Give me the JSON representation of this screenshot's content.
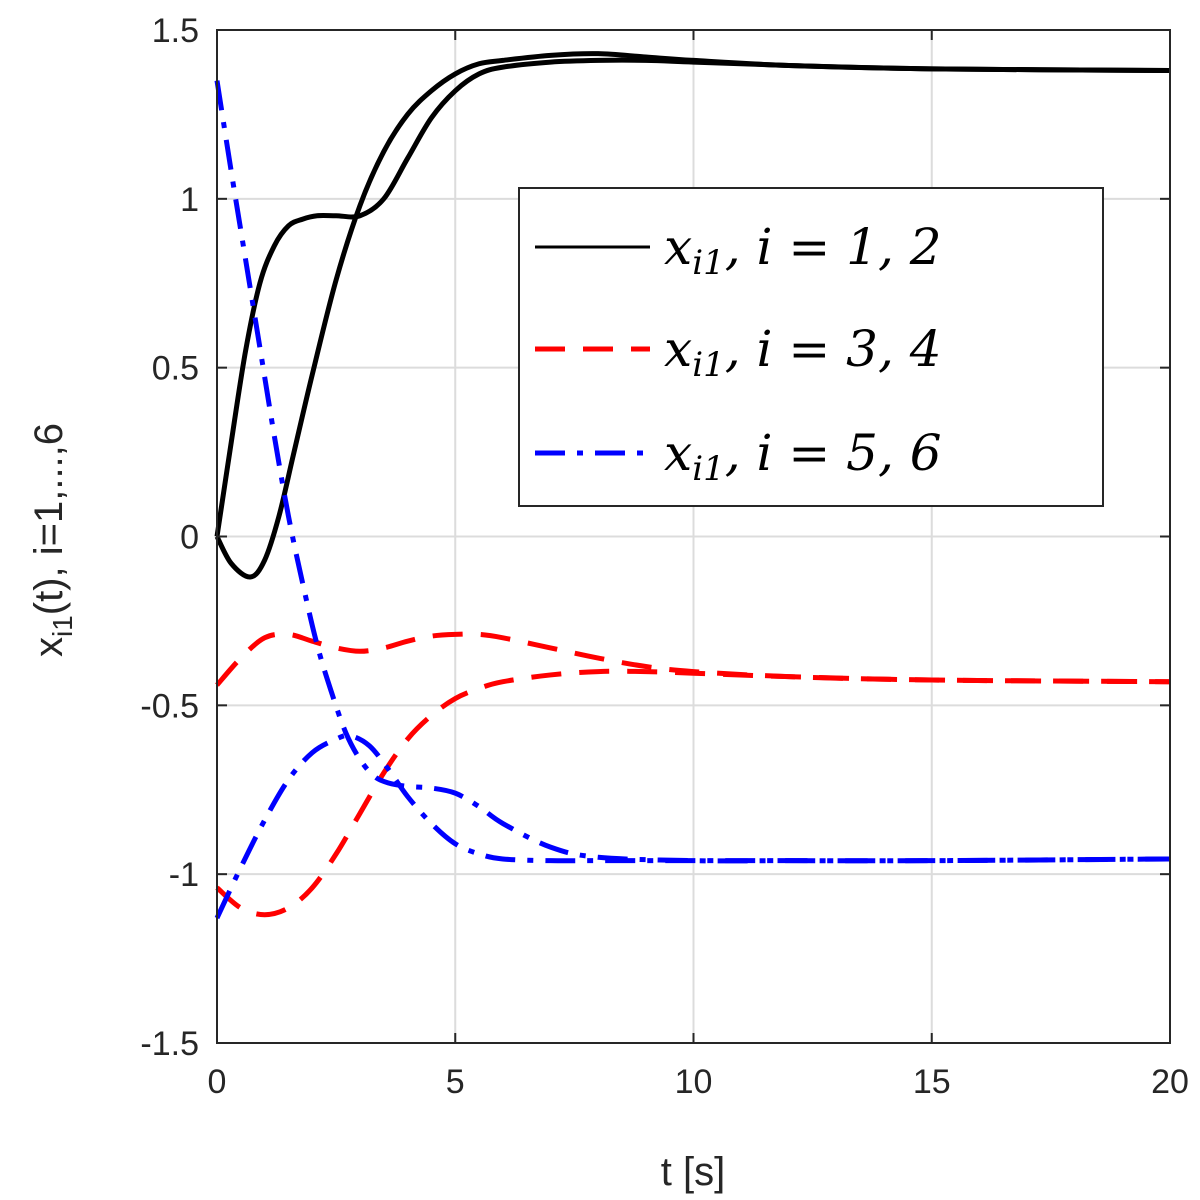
{
  "chart_data": {
    "type": "line",
    "xlabel": "t [s]",
    "ylabel": "x_i1(t), i=1,...,6",
    "ylabel_main": "x",
    "ylabel_sub": "i1",
    "ylabel_rest": "(t), i=1,...,6",
    "xlim": [
      0,
      20
    ],
    "ylim": [
      -1.5,
      1.5
    ],
    "xticks": [
      0,
      5,
      10,
      15,
      20
    ],
    "yticks": [
      -1.5,
      -1,
      -0.5,
      0,
      0.5,
      1,
      1.5
    ],
    "xtick_labels": [
      "0",
      "5",
      "10",
      "15",
      "20"
    ],
    "ytick_labels": [
      "-1.5",
      "-1",
      "-0.5",
      "0",
      "0.5",
      "1",
      "1.5"
    ],
    "grid": true,
    "legend_position": "upper-right",
    "legend": [
      {
        "label": "x_i1,  i = 1, 2",
        "text": "x",
        "sub": "i1",
        "rest": ",  i = 1, 2",
        "color": "#000000",
        "style": "solid"
      },
      {
        "label": "x_i1,  i = 3, 4",
        "text": "x",
        "sub": "i1",
        "rest": ",  i = 3, 4",
        "color": "#ff0000",
        "style": "dashed"
      },
      {
        "label": "x_i1,  i = 5, 6",
        "text": "x",
        "sub": "i1",
        "rest": ",  i = 5, 6",
        "color": "#0000ff",
        "style": "dashdot"
      }
    ],
    "series": [
      {
        "group": 0,
        "color": "#000000",
        "style": "solid",
        "x": [
          0,
          0.3,
          0.6,
          0.9,
          1.2,
          1.5,
          1.8,
          2.1,
          2.5,
          3.0,
          3.5,
          4.0,
          4.5,
          5.0,
          5.5,
          6.0,
          7.0,
          8.0,
          9.0,
          10,
          12,
          15,
          20
        ],
        "y": [
          0,
          0.28,
          0.55,
          0.75,
          0.86,
          0.92,
          0.94,
          0.95,
          0.95,
          0.95,
          1.0,
          1.12,
          1.24,
          1.32,
          1.37,
          1.39,
          1.405,
          1.41,
          1.41,
          1.405,
          1.395,
          1.385,
          1.38
        ]
      },
      {
        "group": 0,
        "color": "#000000",
        "style": "solid",
        "x": [
          0,
          0.3,
          0.7,
          1.0,
          1.3,
          1.6,
          2.0,
          2.5,
          3.0,
          3.5,
          4.0,
          4.5,
          5.0,
          5.5,
          6.0,
          7.0,
          8.0,
          9.0,
          10,
          12,
          15,
          20
        ],
        "y": [
          0,
          -0.08,
          -0.12,
          -0.07,
          0.06,
          0.24,
          0.48,
          0.76,
          0.98,
          1.14,
          1.25,
          1.32,
          1.37,
          1.4,
          1.41,
          1.425,
          1.43,
          1.42,
          1.41,
          1.395,
          1.385,
          1.38
        ]
      },
      {
        "group": 1,
        "color": "#ff0000",
        "style": "dashed",
        "x": [
          0,
          0.5,
          1.0,
          1.5,
          2.0,
          2.5,
          3.0,
          3.5,
          4.0,
          4.5,
          5.0,
          5.5,
          6.0,
          7.0,
          8.0,
          9.0,
          10,
          12,
          15,
          20
        ],
        "y": [
          -0.44,
          -0.36,
          -0.3,
          -0.29,
          -0.31,
          -0.33,
          -0.34,
          -0.33,
          -0.31,
          -0.295,
          -0.29,
          -0.29,
          -0.3,
          -0.33,
          -0.36,
          -0.385,
          -0.4,
          -0.415,
          -0.425,
          -0.43
        ]
      },
      {
        "group": 1,
        "color": "#ff0000",
        "style": "dashed",
        "x": [
          0,
          0.5,
          1.0,
          1.5,
          2.0,
          2.5,
          3.0,
          3.5,
          4.0,
          4.5,
          5.0,
          5.5,
          6.0,
          7.0,
          8.0,
          9.0,
          10,
          12,
          15,
          20
        ],
        "y": [
          -1.04,
          -1.1,
          -1.12,
          -1.1,
          -1.04,
          -0.94,
          -0.82,
          -0.7,
          -0.6,
          -0.53,
          -0.48,
          -0.45,
          -0.43,
          -0.41,
          -0.4,
          -0.4,
          -0.405,
          -0.415,
          -0.425,
          -0.43
        ]
      },
      {
        "group": 2,
        "color": "#0000ff",
        "style": "dashdot",
        "x": [
          0,
          0.3,
          0.6,
          0.9,
          1.2,
          1.5,
          1.8,
          2.1,
          2.4,
          2.7,
          3.0,
          3.3,
          3.6,
          4.0,
          4.5,
          5.0,
          5.5,
          6.0,
          7.0,
          8.0,
          10,
          12,
          15,
          20
        ],
        "y": [
          1.35,
          1.08,
          0.82,
          0.56,
          0.3,
          0.06,
          -0.14,
          -0.32,
          -0.46,
          -0.58,
          -0.66,
          -0.71,
          -0.73,
          -0.74,
          -0.745,
          -0.76,
          -0.8,
          -0.85,
          -0.92,
          -0.95,
          -0.96,
          -0.96,
          -0.96,
          -0.955
        ]
      },
      {
        "group": 2,
        "color": "#0000ff",
        "style": "dashdot",
        "x": [
          0,
          0.5,
          1.0,
          1.5,
          2.0,
          2.5,
          2.8,
          3.2,
          3.6,
          4.0,
          4.5,
          5.0,
          5.5,
          6.0,
          7.0,
          8.0,
          10,
          12,
          15,
          20
        ],
        "y": [
          -1.13,
          -0.98,
          -0.84,
          -0.72,
          -0.64,
          -0.6,
          -0.59,
          -0.62,
          -0.69,
          -0.77,
          -0.85,
          -0.91,
          -0.94,
          -0.955,
          -0.96,
          -0.96,
          -0.96,
          -0.96,
          -0.96,
          -0.955
        ]
      }
    ]
  }
}
